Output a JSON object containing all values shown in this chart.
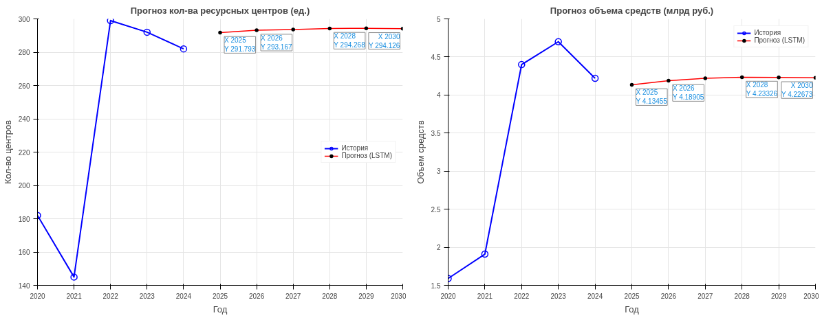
{
  "chart_data": [
    {
      "type": "line",
      "title": "Прогноз кол-ва ресурсных центров (ед.)",
      "xlabel": "Год",
      "ylabel": "Кол-во центров",
      "xlim": [
        2020,
        2030
      ],
      "xticks": [
        2020,
        2021,
        2022,
        2023,
        2024,
        2025,
        2026,
        2027,
        2028,
        2029,
        2030
      ],
      "ylim": [
        140,
        300
      ],
      "yticks": [
        140,
        160,
        180,
        200,
        220,
        240,
        260,
        280,
        300
      ],
      "grid": true,
      "legend": "right",
      "series": [
        {
          "name": "История",
          "color": "#0000ff",
          "marker": "circle",
          "x": [
            2020,
            2021,
            2022,
            2023,
            2024
          ],
          "values": [
            182,
            145,
            299,
            292,
            282
          ]
        },
        {
          "name": "Прогноз (LSTM)",
          "color": "#ff0000",
          "marker": "circle",
          "x": [
            2025,
            2026,
            2027,
            2028,
            2029,
            2030
          ],
          "values": [
            291.793,
            293.167,
            293.6,
            294.268,
            294.3,
            294.126
          ]
        }
      ],
      "annotations": [
        {
          "text": "X 2025\nY 291.793",
          "x": 2025,
          "y": 291.793
        },
        {
          "text": "X 2026\nY 293.167",
          "x": 2026,
          "y": 293.167
        },
        {
          "text": "X 2028\nY 294.268",
          "x": 2028,
          "y": 294.268
        },
        {
          "text": "X 2030\nY 294.126",
          "x": 2030,
          "y": 294.126
        }
      ]
    },
    {
      "type": "line",
      "title": "Прогноз объема средств (млрд руб.)",
      "xlabel": "Год",
      "ylabel": "Объем средств",
      "xlim": [
        2020,
        2030
      ],
      "xticks": [
        2020,
        2021,
        2022,
        2023,
        2024,
        2025,
        2026,
        2027,
        2028,
        2029,
        2030
      ],
      "ylim": [
        1.5,
        5
      ],
      "yticks": [
        1.5,
        2,
        2.5,
        3,
        3.5,
        4,
        4.5,
        5
      ],
      "grid": true,
      "legend": "top right",
      "series": [
        {
          "name": "История",
          "color": "#0000ff",
          "marker": "circle",
          "x": [
            2020,
            2021,
            2022,
            2023,
            2024
          ],
          "values": [
            1.59,
            1.91,
            4.4,
            4.7,
            4.22
          ]
        },
        {
          "name": "Прогноз (LSTM)",
          "color": "#ff0000",
          "marker": "circle",
          "x": [
            2025,
            2026,
            2027,
            2028,
            2029,
            2030
          ],
          "values": [
            4.13455,
            4.18905,
            4.22,
            4.23326,
            4.23,
            4.22673
          ]
        }
      ],
      "annotations": [
        {
          "text": "X 2025\nY 4.13455",
          "x": 2025,
          "y": 4.13455
        },
        {
          "text": "X 2026\nY 4.18905",
          "x": 2026,
          "y": 4.18905
        },
        {
          "text": "X 2028\nY 4.23326",
          "x": 2028,
          "y": 4.23326
        },
        {
          "text": "X 2030\nY 4.22673",
          "x": 2030,
          "y": 4.22673
        }
      ]
    }
  ]
}
